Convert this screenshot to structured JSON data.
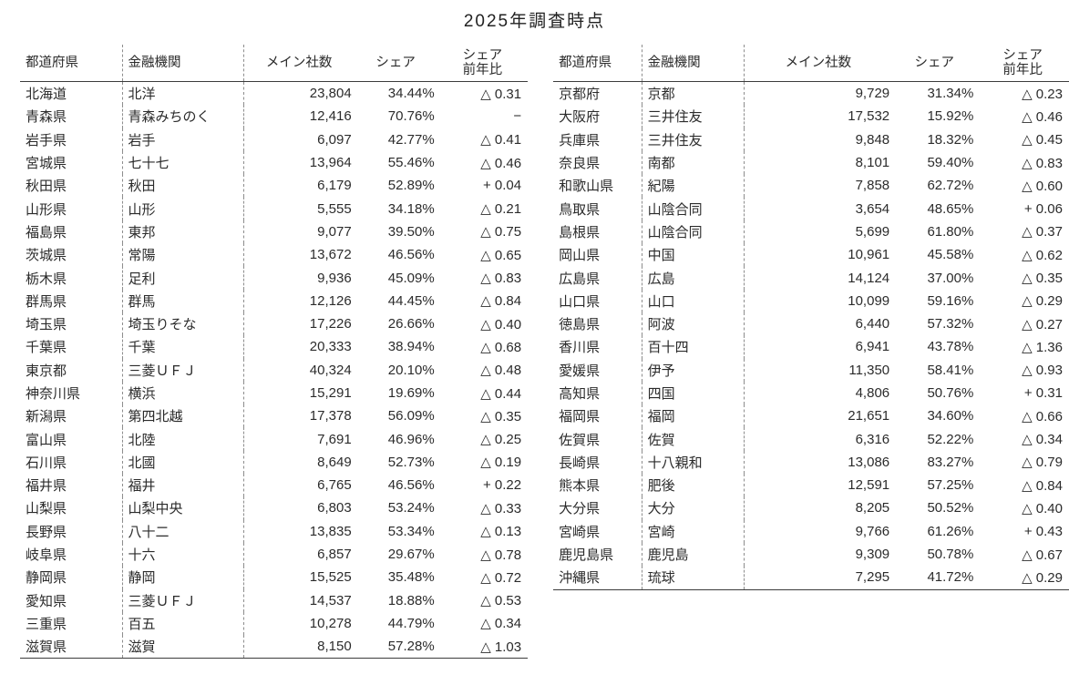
{
  "title": "2025年調査時点",
  "columns": [
    {
      "key": "pref",
      "label": "都道府県",
      "align": "left"
    },
    {
      "key": "bank",
      "label": "金融機関",
      "align": "left"
    },
    {
      "key": "main_count",
      "label": "メイン社数",
      "align": "right"
    },
    {
      "key": "share",
      "label": "シェア",
      "align": "right"
    },
    {
      "key": "share_yoy",
      "label": "シェア\n前年比",
      "align": "right"
    }
  ],
  "left_table": {
    "rows": [
      {
        "pref": "北海道",
        "bank": "北洋",
        "main_count": "23,804",
        "share": "34.44%",
        "share_yoy": "△ 0.31"
      },
      {
        "pref": "青森県",
        "bank": "青森みちのく",
        "main_count": "12,416",
        "share": "70.76%",
        "share_yoy": "−"
      },
      {
        "pref": "岩手県",
        "bank": "岩手",
        "main_count": "6,097",
        "share": "42.77%",
        "share_yoy": "△ 0.41"
      },
      {
        "pref": "宮城県",
        "bank": "七十七",
        "main_count": "13,964",
        "share": "55.46%",
        "share_yoy": "△ 0.46"
      },
      {
        "pref": "秋田県",
        "bank": "秋田",
        "main_count": "6,179",
        "share": "52.89%",
        "share_yoy": "+ 0.04"
      },
      {
        "pref": "山形県",
        "bank": "山形",
        "main_count": "5,555",
        "share": "34.18%",
        "share_yoy": "△ 0.21"
      },
      {
        "pref": "福島県",
        "bank": "東邦",
        "main_count": "9,077",
        "share": "39.50%",
        "share_yoy": "△ 0.75"
      },
      {
        "pref": "茨城県",
        "bank": "常陽",
        "main_count": "13,672",
        "share": "46.56%",
        "share_yoy": "△ 0.65"
      },
      {
        "pref": "栃木県",
        "bank": "足利",
        "main_count": "9,936",
        "share": "45.09%",
        "share_yoy": "△ 0.83"
      },
      {
        "pref": "群馬県",
        "bank": "群馬",
        "main_count": "12,126",
        "share": "44.45%",
        "share_yoy": "△ 0.84"
      },
      {
        "pref": "埼玉県",
        "bank": "埼玉りそな",
        "main_count": "17,226",
        "share": "26.66%",
        "share_yoy": "△ 0.40"
      },
      {
        "pref": "千葉県",
        "bank": "千葉",
        "main_count": "20,333",
        "share": "38.94%",
        "share_yoy": "△ 0.68"
      },
      {
        "pref": "東京都",
        "bank": "三菱ＵＦＪ",
        "main_count": "40,324",
        "share": "20.10%",
        "share_yoy": "△ 0.48"
      },
      {
        "pref": "神奈川県",
        "bank": "横浜",
        "main_count": "15,291",
        "share": "19.69%",
        "share_yoy": "△ 0.44"
      },
      {
        "pref": "新潟県",
        "bank": "第四北越",
        "main_count": "17,378",
        "share": "56.09%",
        "share_yoy": "△ 0.35"
      },
      {
        "pref": "富山県",
        "bank": "北陸",
        "main_count": "7,691",
        "share": "46.96%",
        "share_yoy": "△ 0.25"
      },
      {
        "pref": "石川県",
        "bank": "北國",
        "main_count": "8,649",
        "share": "52.73%",
        "share_yoy": "△ 0.19"
      },
      {
        "pref": "福井県",
        "bank": "福井",
        "main_count": "6,765",
        "share": "46.56%",
        "share_yoy": "+ 0.22"
      },
      {
        "pref": "山梨県",
        "bank": "山梨中央",
        "main_count": "6,803",
        "share": "53.24%",
        "share_yoy": "△ 0.33"
      },
      {
        "pref": "長野県",
        "bank": "八十二",
        "main_count": "13,835",
        "share": "53.34%",
        "share_yoy": "△ 0.13"
      },
      {
        "pref": "岐阜県",
        "bank": "十六",
        "main_count": "6,857",
        "share": "29.67%",
        "share_yoy": "△ 0.78"
      },
      {
        "pref": "静岡県",
        "bank": "静岡",
        "main_count": "15,525",
        "share": "35.48%",
        "share_yoy": "△ 0.72"
      },
      {
        "pref": "愛知県",
        "bank": "三菱ＵＦＪ",
        "main_count": "14,537",
        "share": "18.88%",
        "share_yoy": "△ 0.53"
      },
      {
        "pref": "三重県",
        "bank": "百五",
        "main_count": "10,278",
        "share": "44.79%",
        "share_yoy": "△ 0.34"
      },
      {
        "pref": "滋賀県",
        "bank": "滋賀",
        "main_count": "8,150",
        "share": "57.28%",
        "share_yoy": "△ 1.03"
      }
    ]
  },
  "right_table": {
    "rows": [
      {
        "pref": "京都府",
        "bank": "京都",
        "main_count": "9,729",
        "share": "31.34%",
        "share_yoy": "△ 0.23"
      },
      {
        "pref": "大阪府",
        "bank": "三井住友",
        "main_count": "17,532",
        "share": "15.92%",
        "share_yoy": "△ 0.46"
      },
      {
        "pref": "兵庫県",
        "bank": "三井住友",
        "main_count": "9,848",
        "share": "18.32%",
        "share_yoy": "△ 0.45"
      },
      {
        "pref": "奈良県",
        "bank": "南都",
        "main_count": "8,101",
        "share": "59.40%",
        "share_yoy": "△ 0.83"
      },
      {
        "pref": "和歌山県",
        "bank": "紀陽",
        "main_count": "7,858",
        "share": "62.72%",
        "share_yoy": "△ 0.60"
      },
      {
        "pref": "鳥取県",
        "bank": "山陰合同",
        "main_count": "3,654",
        "share": "48.65%",
        "share_yoy": "+ 0.06"
      },
      {
        "pref": "島根県",
        "bank": "山陰合同",
        "main_count": "5,699",
        "share": "61.80%",
        "share_yoy": "△ 0.37"
      },
      {
        "pref": "岡山県",
        "bank": "中国",
        "main_count": "10,961",
        "share": "45.58%",
        "share_yoy": "△ 0.62"
      },
      {
        "pref": "広島県",
        "bank": "広島",
        "main_count": "14,124",
        "share": "37.00%",
        "share_yoy": "△ 0.35"
      },
      {
        "pref": "山口県",
        "bank": "山口",
        "main_count": "10,099",
        "share": "59.16%",
        "share_yoy": "△ 0.29"
      },
      {
        "pref": "徳島県",
        "bank": "阿波",
        "main_count": "6,440",
        "share": "57.32%",
        "share_yoy": "△ 0.27"
      },
      {
        "pref": "香川県",
        "bank": "百十四",
        "main_count": "6,941",
        "share": "43.78%",
        "share_yoy": "△ 1.36"
      },
      {
        "pref": "愛媛県",
        "bank": "伊予",
        "main_count": "11,350",
        "share": "58.41%",
        "share_yoy": "△ 0.93"
      },
      {
        "pref": "高知県",
        "bank": "四国",
        "main_count": "4,806",
        "share": "50.76%",
        "share_yoy": "+ 0.31"
      },
      {
        "pref": "福岡県",
        "bank": "福岡",
        "main_count": "21,651",
        "share": "34.60%",
        "share_yoy": "△ 0.66"
      },
      {
        "pref": "佐賀県",
        "bank": "佐賀",
        "main_count": "6,316",
        "share": "52.22%",
        "share_yoy": "△ 0.34"
      },
      {
        "pref": "長崎県",
        "bank": "十八親和",
        "main_count": "13,086",
        "share": "83.27%",
        "share_yoy": "△ 0.79"
      },
      {
        "pref": "熊本県",
        "bank": "肥後",
        "main_count": "12,591",
        "share": "57.25%",
        "share_yoy": "△ 0.84"
      },
      {
        "pref": "大分県",
        "bank": "大分",
        "main_count": "8,205",
        "share": "50.52%",
        "share_yoy": "△ 0.40"
      },
      {
        "pref": "宮崎県",
        "bank": "宮崎",
        "main_count": "9,766",
        "share": "61.26%",
        "share_yoy": "+ 0.43"
      },
      {
        "pref": "鹿児島県",
        "bank": "鹿児島",
        "main_count": "9,309",
        "share": "50.78%",
        "share_yoy": "△ 0.67"
      },
      {
        "pref": "沖縄県",
        "bank": "琉球",
        "main_count": "7,295",
        "share": "41.72%",
        "share_yoy": "△ 0.29"
      }
    ]
  }
}
